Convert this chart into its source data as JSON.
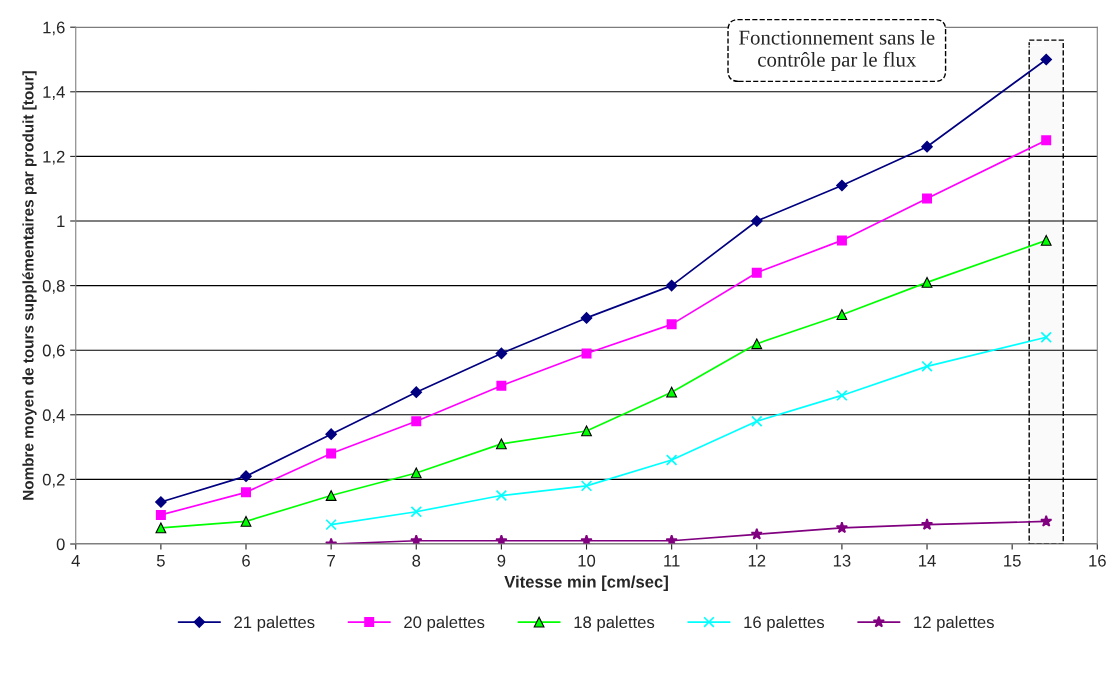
{
  "chart_data": {
    "type": "line",
    "xlabel": "Vitesse min [cm/sec]",
    "ylabel": "Nombre moyen de tours supplémentaires par produit [tour]",
    "xlim": [
      4,
      16
    ],
    "xticks": [
      4,
      5,
      6,
      7,
      8,
      9,
      10,
      11,
      12,
      13,
      14,
      15,
      16
    ],
    "ylim": [
      0,
      1.6
    ],
    "yticks": [
      0,
      {
        "value": 0.2,
        "label": "0,2"
      },
      {
        "value": 0.4,
        "label": "0,4"
      },
      {
        "value": 0.6,
        "label": "0,6"
      },
      {
        "value": 0.8,
        "label": "0,8"
      },
      1,
      {
        "value": 1.2,
        "label": "1,2"
      },
      {
        "value": 1.4,
        "label": "1,4"
      },
      {
        "value": 1.6,
        "label": "1,6"
      }
    ],
    "grid": "y",
    "legend": "bottom",
    "line_style": "solid",
    "series": [
      {
        "name": "21 palettes",
        "color": "#000080",
        "marker": "diamond",
        "x": [
          5,
          6,
          7,
          8,
          9,
          10,
          11,
          12,
          13,
          14,
          15.4
        ],
        "values": [
          0.13,
          0.21,
          0.34,
          0.47,
          0.59,
          0.7,
          0.8,
          1.0,
          1.11,
          1.23,
          1.5
        ]
      },
      {
        "name": "20 palettes",
        "color": "#ff00ff",
        "marker": "square",
        "x": [
          5,
          6,
          7,
          8,
          9,
          10,
          11,
          12,
          13,
          14,
          15.4
        ],
        "values": [
          0.09,
          0.16,
          0.28,
          0.38,
          0.49,
          0.59,
          0.68,
          0.84,
          0.94,
          1.07,
          1.25
        ]
      },
      {
        "name": "18 palettes",
        "color": "#00ff00",
        "marker": "triangle",
        "x": [
          5,
          6,
          7,
          8,
          9,
          10,
          11,
          12,
          13,
          14,
          15.4
        ],
        "values": [
          0.05,
          0.07,
          0.15,
          0.22,
          0.31,
          0.35,
          0.47,
          0.62,
          0.71,
          0.81,
          0.94
        ]
      },
      {
        "name": "16 palettes",
        "color": "#00ffff",
        "marker": "cross",
        "x": [
          7,
          8,
          9,
          10,
          11,
          12,
          13,
          14,
          15.4
        ],
        "values": [
          0.06,
          0.1,
          0.15,
          0.18,
          0.26,
          0.38,
          0.46,
          0.55,
          0.64
        ]
      },
      {
        "name": "12 palettes",
        "color": "#800080",
        "marker": "star",
        "x": [
          7,
          8,
          9,
          10,
          11,
          12,
          13,
          14,
          15.4
        ],
        "values": [
          0.0,
          0.01,
          0.01,
          0.01,
          0.01,
          0.03,
          0.05,
          0.06,
          0.07
        ]
      }
    ],
    "bands": [
      {
        "axis": "x",
        "from": 15.2,
        "to": 15.6,
        "label": "Fonctionnement sans le\ncontrôle par le flux",
        "color": "#fafafa"
      }
    ]
  }
}
